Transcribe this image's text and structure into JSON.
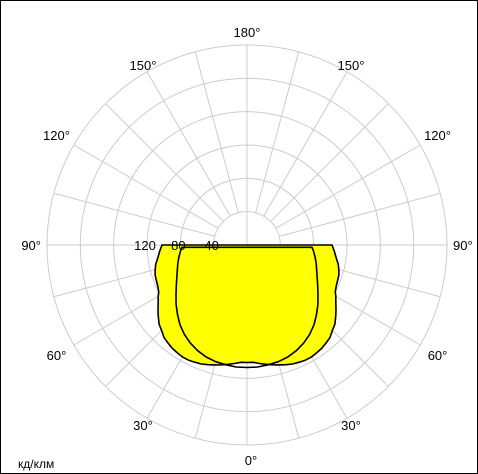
{
  "chart_data": {
    "type": "polar",
    "unit_label": "кд/клм",
    "angle_labels": [
      {
        "deg": 0,
        "text": "0°"
      },
      {
        "deg": 30,
        "text": "30°"
      },
      {
        "deg": -30,
        "text": "30°"
      },
      {
        "deg": 60,
        "text": "60°"
      },
      {
        "deg": -60,
        "text": "60°"
      },
      {
        "deg": 90,
        "text": "90°"
      },
      {
        "deg": -90,
        "text": "90°"
      },
      {
        "deg": 120,
        "text": "120°"
      },
      {
        "deg": -120,
        "text": "120°"
      },
      {
        "deg": 150,
        "text": "150°"
      },
      {
        "deg": -150,
        "text": "150°"
      },
      {
        "deg": 180,
        "text": "180°"
      }
    ],
    "radial_ticks": [
      40,
      80,
      120
    ],
    "radial_tick_labels": [
      "40",
      "80",
      "120"
    ],
    "rlim": [
      0,
      240
    ],
    "rings": [
      40,
      80,
      120,
      160,
      200,
      240
    ],
    "spoke_step_deg": 15,
    "grid": true,
    "series": [
      {
        "fill": "#ffff00",
        "stroke": "#000000",
        "points": [
          [
            90,
            102
          ],
          [
            86,
            105
          ],
          [
            82,
            108
          ],
          [
            78,
            112
          ],
          [
            75,
            114
          ],
          [
            72,
            116
          ],
          [
            68,
            117
          ],
          [
            65,
            118
          ],
          [
            62,
            120
          ],
          [
            60,
            123
          ],
          [
            57,
            127
          ],
          [
            54,
            132
          ],
          [
            51,
            137
          ],
          [
            48,
            142
          ],
          [
            45,
            145
          ],
          [
            42,
            149
          ],
          [
            39,
            151
          ],
          [
            36,
            153
          ],
          [
            33,
            154
          ],
          [
            30,
            155
          ],
          [
            27,
            155
          ],
          [
            24,
            154
          ],
          [
            21,
            153
          ],
          [
            18,
            151
          ],
          [
            15,
            149
          ],
          [
            12,
            147
          ],
          [
            9,
            145
          ],
          [
            6,
            143
          ],
          [
            3,
            141
          ],
          [
            0,
            141
          ],
          [
            -3,
            141
          ],
          [
            -6,
            143
          ],
          [
            -9,
            145
          ],
          [
            -12,
            147
          ],
          [
            -15,
            149
          ],
          [
            -18,
            151
          ],
          [
            -21,
            153
          ],
          [
            -24,
            154
          ],
          [
            -27,
            155
          ],
          [
            -30,
            155
          ],
          [
            -33,
            154
          ],
          [
            -36,
            153
          ],
          [
            -39,
            151
          ],
          [
            -42,
            149
          ],
          [
            -45,
            145
          ],
          [
            -48,
            142
          ],
          [
            -51,
            137
          ],
          [
            -54,
            132
          ],
          [
            -57,
            127
          ],
          [
            -60,
            123
          ],
          [
            -62,
            120
          ],
          [
            -65,
            118
          ],
          [
            -68,
            117
          ],
          [
            -72,
            116
          ],
          [
            -75,
            114
          ],
          [
            -78,
            112
          ],
          [
            -82,
            108
          ],
          [
            -86,
            105
          ],
          [
            -90,
            102
          ]
        ]
      },
      {
        "fill": "none",
        "stroke": "#000000",
        "points": [
          [
            88,
            78
          ],
          [
            85,
            80
          ],
          [
            80,
            83
          ],
          [
            75,
            86
          ],
          [
            70,
            89
          ],
          [
            65,
            93
          ],
          [
            60,
            98
          ],
          [
            55,
            104
          ],
          [
            50,
            111
          ],
          [
            45,
            118
          ],
          [
            40,
            125
          ],
          [
            35,
            131
          ],
          [
            30,
            136
          ],
          [
            25,
            140
          ],
          [
            20,
            143
          ],
          [
            15,
            145
          ],
          [
            10,
            146
          ],
          [
            5,
            147
          ],
          [
            0,
            147
          ],
          [
            -5,
            147
          ],
          [
            -10,
            146
          ],
          [
            -15,
            145
          ],
          [
            -20,
            143
          ],
          [
            -25,
            140
          ],
          [
            -30,
            136
          ],
          [
            -35,
            131
          ],
          [
            -40,
            125
          ],
          [
            -45,
            118
          ],
          [
            -50,
            111
          ],
          [
            -55,
            104
          ],
          [
            -60,
            98
          ],
          [
            -65,
            93
          ],
          [
            -70,
            89
          ],
          [
            -75,
            86
          ],
          [
            -80,
            83
          ],
          [
            -85,
            80
          ],
          [
            -88,
            78
          ]
        ]
      }
    ]
  }
}
